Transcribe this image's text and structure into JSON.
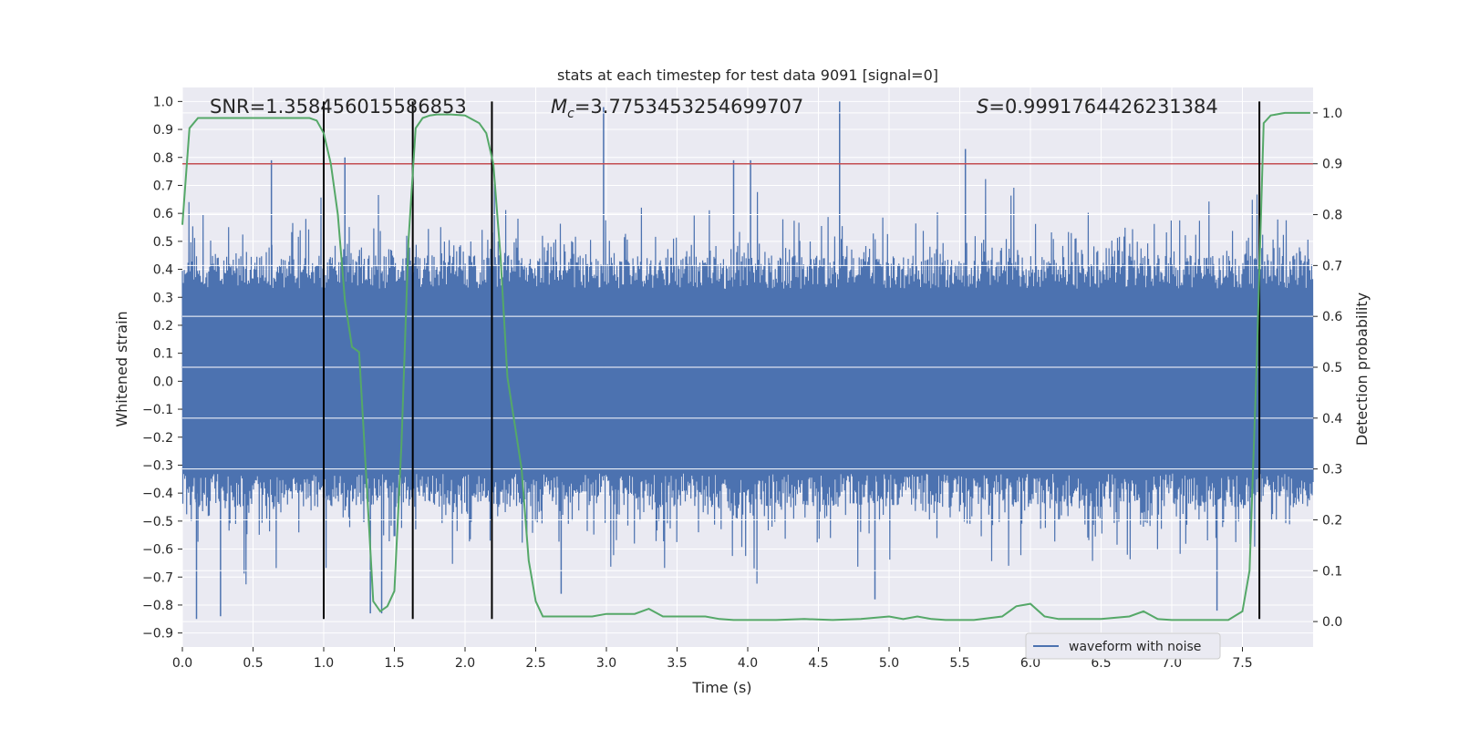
{
  "chart_data": {
    "type": "line",
    "title": "stats at each timestep for test data 9091 [signal=0]",
    "xlabel": "Time (s)",
    "ylabel_left": "Whitened strain",
    "ylabel_right": "Detection probability",
    "xlim": [
      0.0,
      8.0
    ],
    "ylim_left": [
      -0.95,
      1.05
    ],
    "ylim_right": [
      -0.05,
      1.05
    ],
    "x_ticks": [
      "0.0",
      "0.5",
      "1.0",
      "1.5",
      "2.0",
      "2.5",
      "3.0",
      "3.5",
      "4.0",
      "4.5",
      "5.0",
      "5.5",
      "6.0",
      "6.5",
      "7.0",
      "7.5"
    ],
    "x_tick_values": [
      0.0,
      0.5,
      1.0,
      1.5,
      2.0,
      2.5,
      3.0,
      3.5,
      4.0,
      4.5,
      5.0,
      5.5,
      6.0,
      6.5,
      7.0,
      7.5
    ],
    "y_left_ticks": [
      "1.0",
      "0.9",
      "0.8",
      "0.7",
      "0.6",
      "0.5",
      "0.4",
      "0.3",
      "0.2",
      "0.1",
      "0.0",
      "−0.1",
      "−0.2",
      "−0.3",
      "−0.4",
      "−0.5",
      "−0.6",
      "−0.7",
      "−0.8",
      "−0.9"
    ],
    "y_left_tick_values": [
      1.0,
      0.9,
      0.8,
      0.7,
      0.6,
      0.5,
      0.4,
      0.3,
      0.2,
      0.1,
      0.0,
      -0.1,
      -0.2,
      -0.3,
      -0.4,
      -0.5,
      -0.6,
      -0.7,
      -0.8,
      -0.9
    ],
    "y_right_ticks": [
      "1.0",
      "0.9",
      "0.8",
      "0.7",
      "0.6",
      "0.5",
      "0.4",
      "0.3",
      "0.2",
      "0.1",
      "0.0"
    ],
    "y_right_tick_values": [
      1.0,
      0.9,
      0.8,
      0.7,
      0.6,
      0.5,
      0.4,
      0.3,
      0.2,
      0.1,
      0.0
    ],
    "annotations": {
      "snr": "SNR=1.358456015586853",
      "mc_symbol": "M",
      "mc_sub": "c",
      "mc_value": "=3.7753453254699707",
      "s_symbol": "S",
      "s_value": "=0.9991764426231384"
    },
    "threshold": {
      "value": 0.9,
      "axis": "right",
      "color": "#c44e52"
    },
    "vertical_markers": {
      "x": [
        1.0,
        1.63,
        2.19,
        7.62
      ],
      "y_range": [
        -0.85,
        1.0
      ],
      "color": "#000000"
    },
    "waveform": {
      "name": "waveform with noise",
      "color": "#4c72b0",
      "duration": 8.0,
      "core_amplitude": 0.33,
      "notable_spikes": [
        {
          "x": 2.98,
          "y": 0.98
        },
        {
          "x": 4.65,
          "y": 1.0
        },
        {
          "x": 5.54,
          "y": 0.83
        },
        {
          "x": 0.63,
          "y": 0.79
        },
        {
          "x": 1.15,
          "y": 0.8
        },
        {
          "x": 3.9,
          "y": 0.79
        },
        {
          "x": 4.02,
          "y": 0.79
        },
        {
          "x": 0.1,
          "y": -0.85
        },
        {
          "x": 0.27,
          "y": -0.84
        },
        {
          "x": 1.33,
          "y": -0.83
        },
        {
          "x": 1.41,
          "y": -0.83
        },
        {
          "x": 7.32,
          "y": -0.82
        },
        {
          "x": 4.9,
          "y": -0.78
        },
        {
          "x": 2.68,
          "y": -0.76
        }
      ]
    },
    "detection_probability": {
      "color": "#55a868",
      "x": [
        0.0,
        0.05,
        0.11,
        0.2,
        0.3,
        0.4,
        0.5,
        0.6,
        0.7,
        0.8,
        0.9,
        0.95,
        1.0,
        1.05,
        1.1,
        1.15,
        1.2,
        1.25,
        1.3,
        1.35,
        1.4,
        1.45,
        1.5,
        1.55,
        1.6,
        1.65,
        1.7,
        1.75,
        1.8,
        1.9,
        2.0,
        2.1,
        2.15,
        2.2,
        2.25,
        2.3,
        2.35,
        2.4,
        2.45,
        2.5,
        2.55,
        2.6,
        2.7,
        2.8,
        2.9,
        3.0,
        3.1,
        3.2,
        3.3,
        3.4,
        3.5,
        3.6,
        3.7,
        3.8,
        3.9,
        4.0,
        4.2,
        4.4,
        4.6,
        4.8,
        5.0,
        5.1,
        5.2,
        5.3,
        5.4,
        5.6,
        5.8,
        5.9,
        6.0,
        6.1,
        6.2,
        6.3,
        6.5,
        6.7,
        6.8,
        6.9,
        7.0,
        7.2,
        7.4,
        7.5,
        7.55,
        7.6,
        7.65,
        7.7,
        7.8,
        7.9,
        7.98
      ],
      "values": [
        0.78,
        0.97,
        0.99,
        0.99,
        0.99,
        0.99,
        0.99,
        0.99,
        0.99,
        0.99,
        0.99,
        0.985,
        0.96,
        0.9,
        0.8,
        0.63,
        0.54,
        0.53,
        0.29,
        0.04,
        0.02,
        0.03,
        0.06,
        0.35,
        0.75,
        0.97,
        0.99,
        0.995,
        0.997,
        0.997,
        0.995,
        0.98,
        0.96,
        0.9,
        0.72,
        0.48,
        0.39,
        0.3,
        0.12,
        0.04,
        0.01,
        0.01,
        0.01,
        0.01,
        0.01,
        0.015,
        0.015,
        0.015,
        0.025,
        0.01,
        0.01,
        0.01,
        0.01,
        0.005,
        0.003,
        0.003,
        0.003,
        0.005,
        0.003,
        0.005,
        0.01,
        0.005,
        0.01,
        0.005,
        0.003,
        0.003,
        0.01,
        0.03,
        0.035,
        0.01,
        0.005,
        0.005,
        0.005,
        0.01,
        0.02,
        0.005,
        0.003,
        0.003,
        0.003,
        0.02,
        0.1,
        0.5,
        0.98,
        0.995,
        1.0,
        1.0,
        1.0
      ]
    },
    "legend": {
      "label": "waveform with noise",
      "position": "lower-right"
    }
  }
}
